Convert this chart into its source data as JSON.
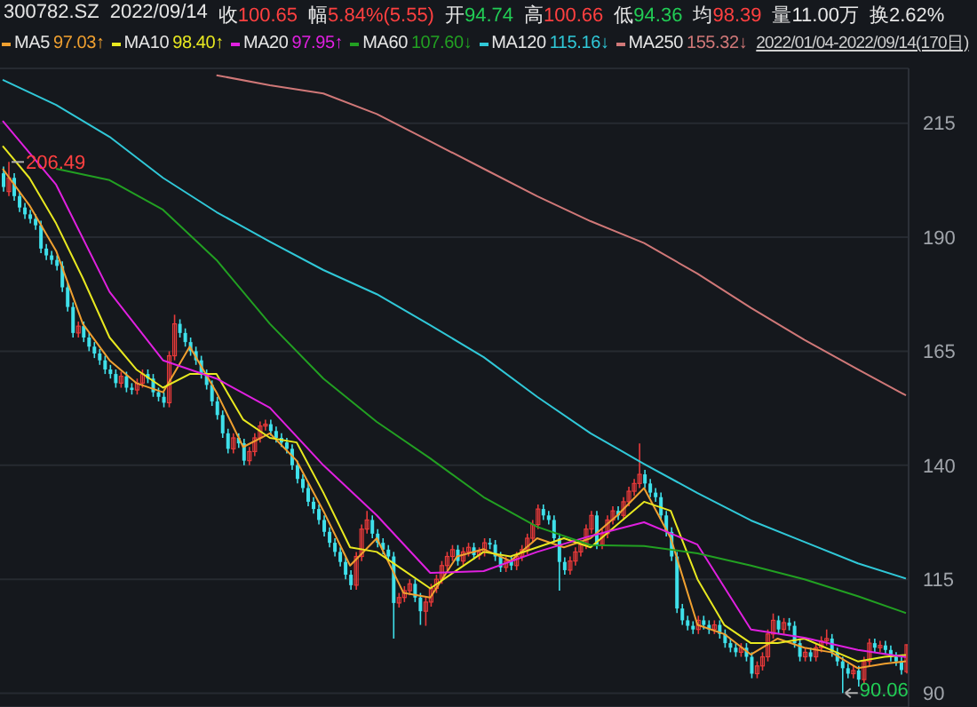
{
  "chart_data": {
    "type": "candlestick",
    "annotations": [
      "300782.SZ",
      "2022/09/14",
      "收100.65",
      "幅5.84%(5.55)",
      "开94.74",
      "高100.66",
      "低94.36",
      "均98.39",
      "量11.00万",
      "换2.62%",
      "97.03↑",
      "98.40↑",
      "97.95↑",
      "107.60↓",
      "115.16↓",
      "155.32↓",
      "2022/01/04-2022/09/14(170日)",
      "206.49",
      "90.06"
    ],
    "categories": [
      null,
      null,
      null,
      null,
      null,
      null,
      null,
      null,
      null,
      null,
      null,
      null,
      null,
      null,
      null,
      null,
      null,
      null,
      null,
      null,
      null,
      null,
      null,
      null,
      null,
      null,
      null,
      null,
      null,
      null,
      null,
      null,
      null,
      null,
      null,
      null,
      null,
      null,
      null,
      null,
      null,
      null,
      null,
      null,
      null,
      null,
      null,
      null,
      null,
      null,
      null,
      null,
      null,
      null,
      null,
      null,
      null,
      null,
      null,
      null,
      null,
      null,
      null,
      null,
      null,
      null,
      null,
      null,
      null,
      null,
      null,
      null,
      null,
      null,
      null,
      null,
      null,
      null,
      null,
      null,
      null,
      null,
      null,
      null,
      null,
      null,
      null,
      null,
      null,
      null,
      null,
      null,
      null,
      null,
      null,
      null,
      null,
      null,
      null,
      null,
      null,
      null,
      null,
      null,
      null,
      null,
      null,
      null,
      null,
      null,
      null,
      null,
      null,
      null,
      null,
      null,
      null,
      null,
      null,
      null,
      null,
      null,
      null,
      null,
      null,
      null,
      null,
      null,
      null,
      null,
      null,
      null,
      null,
      null,
      null,
      null,
      null,
      null,
      null,
      null,
      null,
      null,
      null,
      null,
      null,
      null,
      null,
      null,
      null,
      null,
      null,
      null,
      null,
      null,
      null,
      null,
      null,
      null,
      null,
      null,
      null,
      null,
      null,
      null,
      null,
      null,
      null,
      null,
      null,
      null
    ],
    "ohlc": [
      [
        204,
        205.5,
        200,
        201
      ],
      [
        200,
        206.49,
        199,
        203
      ],
      [
        203,
        204,
        198,
        199
      ],
      [
        199,
        200,
        195.5,
        196.5
      ],
      [
        196.5,
        197.5,
        194,
        195
      ],
      [
        195,
        196,
        193,
        194
      ],
      [
        194,
        195,
        191.6,
        192.6
      ],
      [
        192.6,
        193.6,
        186.5,
        187.5
      ],
      [
        187.5,
        188.5,
        185,
        186
      ],
      [
        186,
        187,
        184,
        185
      ],
      [
        185,
        186,
        182.7,
        183.7
      ],
      [
        183.7,
        184.7,
        178,
        179
      ],
      [
        179,
        180,
        173.7,
        174.7
      ],
      [
        174.7,
        175.7,
        168,
        169
      ],
      [
        169,
        171.5,
        168,
        170.5
      ],
      [
        170.5,
        171.5,
        167,
        168
      ],
      [
        168,
        169,
        165,
        166
      ],
      [
        166,
        167,
        163.5,
        164.5
      ],
      [
        164.5,
        165.5,
        162,
        163
      ],
      [
        163,
        164,
        160,
        161
      ],
      [
        161,
        162,
        159,
        160
      ],
      [
        160,
        161,
        157,
        158
      ],
      [
        158,
        160.5,
        157,
        159.5
      ],
      [
        159.5,
        160.5,
        156,
        157
      ],
      [
        157,
        158,
        155.5,
        156.5
      ],
      [
        156.5,
        159,
        155.5,
        158
      ],
      [
        158,
        161,
        157,
        160
      ],
      [
        160,
        161,
        158,
        159
      ],
      [
        159,
        160,
        155,
        156
      ],
      [
        156,
        157,
        154,
        155
      ],
      [
        155,
        156,
        152.7,
        153.7
      ],
      [
        153.7,
        165,
        152.7,
        164
      ],
      [
        164,
        173,
        163,
        171
      ],
      [
        171,
        172,
        168,
        169
      ],
      [
        169,
        170,
        166,
        167
      ],
      [
        167,
        168,
        164,
        165
      ],
      [
        165,
        166,
        162,
        163
      ],
      [
        163,
        164,
        159,
        160
      ],
      [
        160,
        161,
        156.6,
        157.6
      ],
      [
        157.6,
        158.6,
        153,
        154
      ],
      [
        154,
        155,
        150,
        151
      ],
      [
        151,
        152,
        146,
        147
      ],
      [
        147,
        148,
        142.6,
        143.6
      ],
      [
        143.6,
        147,
        142.6,
        146
      ],
      [
        146,
        147,
        143.8,
        144.8
      ],
      [
        144.8,
        145.8,
        140,
        141
      ],
      [
        141,
        144,
        140,
        143
      ],
      [
        143,
        147,
        142,
        146
      ],
      [
        146,
        149.6,
        145,
        148.6
      ],
      [
        148.6,
        150,
        147.6,
        149
      ],
      [
        149,
        150,
        146.5,
        147.5
      ],
      [
        147.5,
        148.5,
        145,
        146
      ],
      [
        146,
        147,
        144,
        145
      ],
      [
        145,
        146,
        142.6,
        143.6
      ],
      [
        143.6,
        144.6,
        139,
        140
      ],
      [
        140,
        141,
        136,
        137
      ],
      [
        137,
        138,
        134,
        135
      ],
      [
        135,
        136,
        131,
        132
      ],
      [
        132,
        133,
        129.4,
        130.4
      ],
      [
        130.4,
        131.4,
        127,
        128
      ],
      [
        128,
        129,
        124.4,
        125.4
      ],
      [
        125.4,
        126.4,
        122,
        123
      ],
      [
        123,
        124,
        120,
        121
      ],
      [
        121,
        122,
        117.8,
        118.8
      ],
      [
        118.8,
        119.8,
        115,
        116
      ],
      [
        116,
        117,
        112.7,
        113.7
      ],
      [
        113.7,
        121,
        112.7,
        120
      ],
      [
        120,
        127,
        119,
        126
      ],
      [
        126,
        130,
        125,
        128
      ],
      [
        128,
        129,
        124,
        125
      ],
      [
        125,
        126,
        122,
        123
      ],
      [
        123,
        124,
        120.5,
        121.5
      ],
      [
        121.5,
        122.5,
        119,
        120
      ],
      [
        120,
        121,
        102,
        109.8
      ],
      [
        109.8,
        112,
        108.8,
        111
      ],
      [
        111,
        113.5,
        110,
        112.5
      ],
      [
        112.5,
        115,
        111.5,
        114
      ],
      [
        114,
        115,
        110,
        111
      ],
      [
        111,
        112,
        105,
        108
      ],
      [
        108,
        111,
        104.8,
        110
      ],
      [
        110,
        114,
        109,
        113
      ],
      [
        113,
        116,
        112,
        115
      ],
      [
        115,
        119,
        114,
        118
      ],
      [
        118,
        121,
        117,
        120
      ],
      [
        120,
        122.5,
        119,
        121.5
      ],
      [
        121.5,
        122.5,
        118,
        119
      ],
      [
        119,
        122,
        118,
        121
      ],
      [
        121,
        123,
        120,
        122
      ],
      [
        122,
        123,
        119.3,
        120.3
      ],
      [
        120.3,
        122,
        119.3,
        121
      ],
      [
        121,
        124,
        120,
        123
      ],
      [
        123,
        124,
        121.6,
        122.6
      ],
      [
        122.6,
        123.6,
        119,
        120
      ],
      [
        120,
        121,
        116.6,
        117.6
      ],
      [
        117.6,
        120,
        116.6,
        119
      ],
      [
        119,
        120,
        117,
        118
      ],
      [
        118,
        121,
        117,
        120
      ],
      [
        120,
        122.5,
        119,
        121.5
      ],
      [
        121.5,
        125,
        120.5,
        124
      ],
      [
        124,
        128,
        123,
        127
      ],
      [
        127,
        131.4,
        126,
        130.4
      ],
      [
        130.4,
        131.4,
        128,
        129
      ],
      [
        129,
        130,
        127,
        128
      ],
      [
        128,
        129,
        123,
        124
      ],
      [
        124,
        125,
        112.5,
        118.8
      ],
      [
        118.8,
        119.8,
        116,
        117
      ],
      [
        117,
        120,
        116,
        119
      ],
      [
        119,
        122,
        118,
        121
      ],
      [
        121,
        123.6,
        120,
        122.6
      ],
      [
        122.6,
        127,
        121.6,
        126
      ],
      [
        126,
        130,
        125,
        129
      ],
      [
        129,
        130,
        121.6,
        122.6
      ],
      [
        122.6,
        126,
        121.6,
        125
      ],
      [
        125,
        129,
        124,
        128
      ],
      [
        128,
        131,
        127,
        130
      ],
      [
        130,
        131,
        128,
        129
      ],
      [
        129,
        133,
        128,
        132
      ],
      [
        132,
        135.3,
        131,
        134.3
      ],
      [
        134.3,
        137,
        133.3,
        136
      ],
      [
        136,
        144.8,
        135,
        138
      ],
      [
        138,
        139,
        135,
        136
      ],
      [
        136,
        137,
        133,
        134
      ],
      [
        134,
        135,
        132,
        133
      ],
      [
        133,
        134,
        128,
        129
      ],
      [
        129,
        130,
        124.4,
        125.4
      ],
      [
        125.4,
        126.4,
        119,
        120
      ],
      [
        120,
        121,
        107.6,
        108.6
      ],
      [
        108.6,
        109.6,
        105,
        106
      ],
      [
        106,
        107,
        103.8,
        104.8
      ],
      [
        104.8,
        105.8,
        103,
        104
      ],
      [
        104,
        107,
        103,
        106
      ],
      [
        106,
        107,
        104,
        105
      ],
      [
        105,
        106,
        103,
        104
      ],
      [
        104,
        106,
        103,
        105
      ],
      [
        105,
        106,
        102,
        103
      ],
      [
        103,
        104,
        100,
        101
      ],
      [
        101,
        102,
        99,
        100
      ],
      [
        100,
        101,
        98,
        99
      ],
      [
        99,
        101,
        98,
        100
      ],
      [
        100,
        101,
        97,
        98
      ],
      [
        98,
        99,
        93.3,
        94.3
      ],
      [
        94.3,
        97,
        93.3,
        96
      ],
      [
        96,
        99,
        95,
        98
      ],
      [
        98,
        104,
        97,
        103
      ],
      [
        103,
        107.5,
        102,
        106
      ],
      [
        106,
        107,
        103,
        104
      ],
      [
        104,
        106.5,
        103,
        105.5
      ],
      [
        105.5,
        106.5,
        103.8,
        104.8
      ],
      [
        104.8,
        105.8,
        100,
        101
      ],
      [
        101,
        102,
        97,
        98
      ],
      [
        98,
        100,
        97,
        99
      ],
      [
        99,
        100,
        97,
        98
      ],
      [
        98,
        101,
        97,
        100
      ],
      [
        100,
        102.5,
        99,
        101.5
      ],
      [
        101.5,
        104,
        100.5,
        102
      ],
      [
        102,
        103,
        98,
        99
      ],
      [
        99,
        100,
        96,
        97
      ],
      [
        97,
        98,
        90.06,
        95.5
      ],
      [
        95.5,
        96.5,
        93.3,
        94.3
      ],
      [
        94.3,
        96,
        93.3,
        95
      ],
      [
        95,
        96,
        91.5,
        93
      ],
      [
        93,
        98,
        92,
        97
      ],
      [
        97,
        102,
        96,
        101
      ],
      [
        101,
        102,
        99,
        100
      ],
      [
        100,
        101.5,
        99,
        100.5
      ],
      [
        100.5,
        101.5,
        98.5,
        99.5
      ],
      [
        99.5,
        100.5,
        97,
        98
      ],
      [
        98,
        99,
        96,
        97
      ],
      [
        97,
        98,
        94.1,
        95.1
      ],
      [
        94.74,
        100.66,
        94.36,
        100.65
      ]
    ],
    "series": [
      {
        "name": "MA5",
        "type": "line",
        "color": "#f0a030",
        "values": [
          205,
          null,
          null,
          null,
          null,
          197,
          null,
          null,
          null,
          null,
          187,
          null,
          null,
          null,
          null,
          171,
          null,
          null,
          null,
          null,
          163,
          null,
          null,
          null,
          null,
          158,
          null,
          null,
          null,
          null,
          156,
          null,
          null,
          null,
          null,
          166,
          null,
          null,
          null,
          null,
          156,
          null,
          null,
          null,
          null,
          144,
          null,
          null,
          null,
          null,
          147,
          null,
          null,
          null,
          null,
          141,
          null,
          null,
          null,
          null,
          130,
          null,
          null,
          null,
          null,
          118,
          null,
          null,
          null,
          null,
          124,
          null,
          null,
          null,
          null,
          112,
          null,
          null,
          null,
          null,
          111,
          null,
          null,
          null,
          null,
          120,
          null,
          null,
          null,
          null,
          121.6,
          null,
          null,
          null,
          null,
          119,
          null,
          null,
          null,
          null,
          124,
          null,
          null,
          null,
          null,
          122,
          null,
          null,
          null,
          null,
          124,
          null,
          null,
          null,
          null,
          129,
          null,
          null,
          null,
          null,
          135,
          null,
          null,
          null,
          null,
          124,
          null,
          null,
          null,
          null,
          105,
          null,
          null,
          null,
          null,
          103,
          null,
          null,
          null,
          null,
          98.5,
          null,
          null,
          null,
          null,
          102,
          null,
          null,
          null,
          null,
          100,
          null,
          null,
          null,
          null,
          99,
          null,
          null,
          null,
          null,
          95.5,
          null,
          null,
          null,
          null,
          96.5,
          null,
          null,
          null,
          97.03
        ]
      },
      {
        "name": "MA10",
        "type": "line",
        "color": "#e8e820",
        "values": [
          210,
          null,
          null,
          null,
          null,
          203,
          null,
          null,
          null,
          null,
          193,
          null,
          null,
          null,
          null,
          181,
          null,
          null,
          null,
          null,
          168,
          null,
          null,
          null,
          null,
          161,
          null,
          null,
          null,
          null,
          157,
          null,
          null,
          null,
          null,
          160,
          null,
          null,
          null,
          null,
          160,
          null,
          null,
          null,
          null,
          150,
          null,
          null,
          null,
          null,
          146,
          null,
          null,
          null,
          null,
          145,
          null,
          null,
          null,
          null,
          134,
          null,
          null,
          null,
          null,
          122,
          null,
          null,
          null,
          null,
          121,
          null,
          null,
          null,
          null,
          117,
          null,
          null,
          null,
          null,
          113,
          null,
          null,
          null,
          null,
          117,
          null,
          null,
          null,
          null,
          121,
          null,
          null,
          null,
          null,
          120,
          null,
          null,
          null,
          null,
          122,
          null,
          null,
          null,
          null,
          124,
          null,
          null,
          null,
          null,
          122,
          null,
          null,
          null,
          null,
          127,
          null,
          null,
          null,
          null,
          132,
          null,
          null,
          null,
          null,
          130,
          null,
          null,
          null,
          null,
          115,
          null,
          null,
          null,
          null,
          105,
          null,
          null,
          null,
          null,
          101,
          null,
          null,
          null,
          null,
          101,
          null,
          null,
          null,
          null,
          102,
          null,
          null,
          null,
          null,
          99.5,
          null,
          null,
          null,
          null,
          97,
          null,
          null,
          null,
          null,
          98,
          null,
          null,
          null,
          98.4
        ]
      },
      {
        "name": "MA20",
        "type": "line",
        "color": "#e020e0",
        "values": [
          215.5,
          null,
          null,
          null,
          null,
          null,
          null,
          null,
          null,
          null,
          201.5,
          null,
          null,
          null,
          null,
          null,
          null,
          null,
          null,
          null,
          178,
          null,
          null,
          null,
          null,
          null,
          null,
          null,
          null,
          null,
          163,
          null,
          null,
          null,
          null,
          null,
          null,
          null,
          null,
          null,
          159,
          null,
          null,
          null,
          null,
          null,
          null,
          null,
          null,
          null,
          152.6,
          null,
          null,
          null,
          null,
          null,
          null,
          null,
          null,
          null,
          140,
          null,
          null,
          null,
          null,
          null,
          null,
          null,
          null,
          null,
          129,
          null,
          null,
          null,
          null,
          null,
          null,
          null,
          null,
          null,
          116.4,
          null,
          null,
          null,
          null,
          null,
          null,
          null,
          null,
          null,
          116.8,
          null,
          null,
          null,
          null,
          null,
          null,
          null,
          null,
          null,
          121,
          null,
          null,
          null,
          null,
          null,
          null,
          null,
          null,
          null,
          124.5,
          null,
          null,
          null,
          null,
          null,
          null,
          null,
          null,
          null,
          127.5,
          null,
          null,
          null,
          null,
          null,
          null,
          null,
          null,
          null,
          122.6,
          null,
          null,
          null,
          null,
          null,
          null,
          null,
          null,
          null,
          104,
          null,
          null,
          null,
          null,
          null,
          null,
          null,
          null,
          null,
          102.2,
          null,
          null,
          null,
          null,
          null,
          null,
          null,
          null,
          null,
          99.5,
          null,
          null,
          null,
          null,
          null,
          null,
          null,
          null,
          97.95
        ]
      },
      {
        "name": "MA60",
        "type": "line",
        "color": "#22a022",
        "values": [
          null,
          null,
          null,
          null,
          null,
          null,
          null,
          null,
          null,
          null,
          205,
          null,
          null,
          null,
          null,
          null,
          null,
          null,
          null,
          null,
          202.5,
          null,
          null,
          null,
          null,
          null,
          null,
          null,
          null,
          null,
          196,
          null,
          null,
          null,
          null,
          null,
          null,
          null,
          null,
          null,
          185,
          null,
          null,
          null,
          null,
          null,
          null,
          null,
          null,
          null,
          171,
          null,
          null,
          null,
          null,
          null,
          null,
          null,
          null,
          null,
          159,
          null,
          null,
          null,
          null,
          null,
          null,
          null,
          null,
          null,
          149.5,
          null,
          null,
          null,
          null,
          null,
          null,
          null,
          null,
          null,
          141.5,
          null,
          null,
          null,
          null,
          null,
          null,
          null,
          null,
          null,
          133,
          null,
          null,
          null,
          null,
          null,
          null,
          null,
          null,
          null,
          126.5,
          null,
          null,
          null,
          null,
          null,
          null,
          null,
          null,
          null,
          122.5,
          null,
          null,
          null,
          null,
          null,
          null,
          null,
          null,
          null,
          122.3,
          null,
          null,
          null,
          null,
          null,
          null,
          null,
          null,
          null,
          120.7,
          null,
          null,
          null,
          null,
          null,
          null,
          null,
          null,
          null,
          118,
          null,
          null,
          null,
          null,
          null,
          null,
          null,
          null,
          null,
          115,
          null,
          null,
          null,
          null,
          null,
          null,
          null,
          null,
          null,
          111.3,
          null,
          null,
          null,
          null,
          null,
          null,
          null,
          null,
          107.6
        ]
      },
      {
        "name": "MA120",
        "type": "line",
        "color": "#30c8d8",
        "values": [
          224.5,
          null,
          null,
          null,
          null,
          null,
          null,
          null,
          null,
          null,
          219,
          null,
          null,
          null,
          null,
          null,
          null,
          null,
          null,
          null,
          212,
          null,
          null,
          null,
          null,
          null,
          null,
          null,
          null,
          null,
          203,
          null,
          null,
          null,
          null,
          null,
          null,
          null,
          null,
          null,
          195.5,
          null,
          null,
          null,
          null,
          null,
          null,
          null,
          null,
          null,
          189,
          null,
          null,
          null,
          null,
          null,
          null,
          null,
          null,
          null,
          182.8,
          null,
          null,
          null,
          null,
          null,
          null,
          null,
          null,
          null,
          177.5,
          null,
          null,
          null,
          null,
          null,
          null,
          null,
          null,
          null,
          170.7,
          null,
          null,
          null,
          null,
          null,
          null,
          null,
          null,
          null,
          163.7,
          null,
          null,
          null,
          null,
          null,
          null,
          null,
          null,
          null,
          155,
          null,
          null,
          null,
          null,
          null,
          null,
          null,
          null,
          null,
          147,
          null,
          null,
          null,
          null,
          null,
          null,
          null,
          null,
          null,
          140.3,
          null,
          null,
          null,
          null,
          null,
          null,
          null,
          null,
          null,
          133.9,
          null,
          null,
          null,
          null,
          null,
          null,
          null,
          null,
          null,
          127.9,
          null,
          null,
          null,
          null,
          null,
          null,
          null,
          null,
          null,
          123.2,
          null,
          null,
          null,
          null,
          null,
          null,
          null,
          null,
          null,
          118.5,
          null,
          null,
          null,
          null,
          null,
          null,
          null,
          null,
          115.16
        ]
      },
      {
        "name": "MA250",
        "type": "line",
        "color": "#d07878",
        "values": [
          null,
          null,
          null,
          null,
          null,
          null,
          null,
          null,
          null,
          null,
          null,
          null,
          null,
          null,
          null,
          null,
          null,
          null,
          null,
          null,
          null,
          null,
          null,
          null,
          null,
          null,
          null,
          null,
          null,
          null,
          null,
          null,
          null,
          null,
          null,
          null,
          null,
          null,
          null,
          null,
          225.5,
          null,
          null,
          null,
          null,
          null,
          null,
          null,
          null,
          null,
          223.3,
          null,
          null,
          null,
          null,
          null,
          null,
          null,
          null,
          null,
          221.5,
          null,
          null,
          null,
          null,
          null,
          null,
          null,
          null,
          null,
          217,
          null,
          null,
          null,
          null,
          null,
          null,
          null,
          null,
          null,
          211,
          null,
          null,
          null,
          null,
          null,
          null,
          null,
          null,
          null,
          205,
          null,
          null,
          null,
          null,
          null,
          null,
          null,
          null,
          null,
          199,
          null,
          null,
          null,
          null,
          null,
          null,
          null,
          null,
          null,
          193.5,
          null,
          null,
          null,
          null,
          null,
          null,
          null,
          null,
          null,
          188.7,
          null,
          null,
          null,
          null,
          null,
          null,
          null,
          null,
          null,
          182,
          null,
          null,
          null,
          null,
          null,
          null,
          null,
          null,
          null,
          174.5,
          null,
          null,
          null,
          null,
          null,
          null,
          null,
          null,
          null,
          167.5,
          null,
          null,
          null,
          null,
          null,
          null,
          null,
          null,
          null,
          161,
          null,
          null,
          null,
          null,
          null,
          null,
          null,
          null,
          155.32
        ]
      }
    ],
    "ylim": [
      87,
      227
    ],
    "yticks": [
      90,
      115,
      140,
      165,
      190,
      215
    ],
    "grid": "y",
    "legend": "top",
    "tick_labels": "y"
  }
}
